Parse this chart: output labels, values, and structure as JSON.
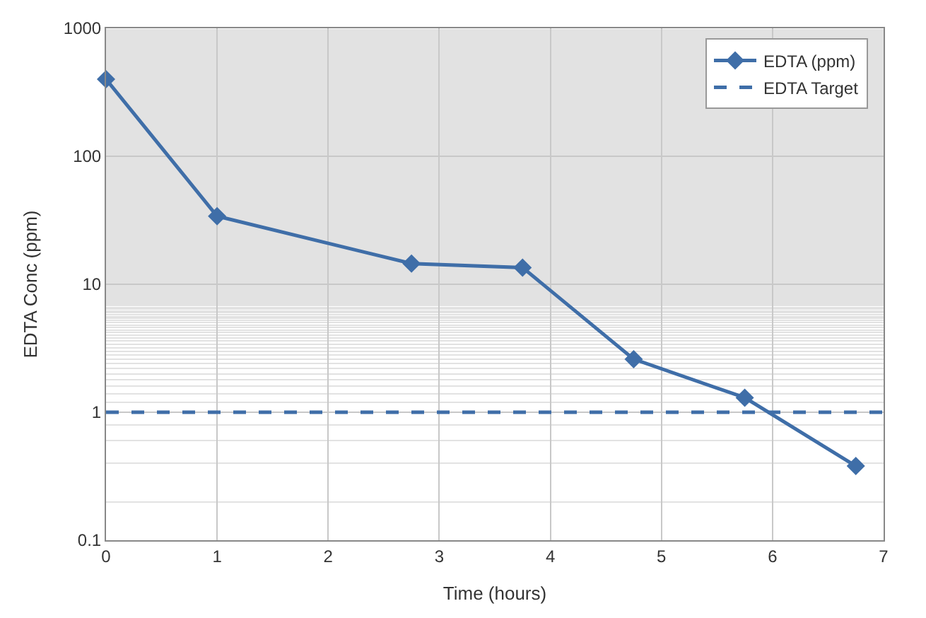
{
  "chart_data": {
    "type": "line",
    "xlabel": "Time (hours)",
    "ylabel": "EDTA Conc (ppm)",
    "x": [
      0,
      1,
      2.75,
      3.75,
      4.75,
      5.75,
      6.75
    ],
    "series": [
      {
        "name": "EDTA (ppm)",
        "color": "#3f6ea8",
        "values": [
          400,
          34,
          14.5,
          13.5,
          2.6,
          1.3,
          0.38
        ]
      }
    ],
    "ref_lines": [
      {
        "axis": "y",
        "value": 1,
        "label": "EDTA Target",
        "color": "#3f6ea8",
        "line_style": "dashed"
      }
    ],
    "xlim": [
      0,
      7
    ],
    "xticks": [
      0,
      1,
      2,
      3,
      4,
      5,
      6,
      7
    ],
    "ylim": [
      0.1,
      1000
    ],
    "yticks": [
      0.1,
      1,
      10,
      100,
      1000
    ],
    "log": "y",
    "grid": true,
    "legend": "top right",
    "marker": "diamond",
    "line_style": "solid"
  }
}
